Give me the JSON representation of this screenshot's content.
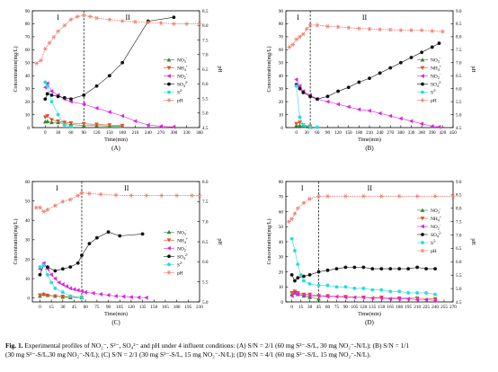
{
  "chart_data": [
    {
      "panel_label": "(A)",
      "type": "line",
      "xlabel": "Time(min)",
      "ylabel": "Concentration(mg/L)",
      "y2label": "pH",
      "xlim": [
        -30,
        360
      ],
      "xticks": [
        0,
        30,
        60,
        90,
        120,
        150,
        180,
        210,
        240,
        270,
        300,
        330,
        360
      ],
      "ylim": [
        0,
        90
      ],
      "yticks": [
        0,
        10,
        20,
        30,
        40,
        50,
        60,
        70,
        80,
        90
      ],
      "y2lim": [
        4.5,
        8.5
      ],
      "y2ticks": [
        4.5,
        5.0,
        5.5,
        6.0,
        6.5,
        7.0,
        7.5,
        8.0,
        8.5
      ],
      "phase_split": 90,
      "phase_labels": [
        "I",
        "II"
      ],
      "legend": "right-middle",
      "series": [
        {
          "name": "NO3-",
          "color": "#2e8b2e",
          "marker": "triangle-up",
          "axis": "left",
          "x": [
            0,
            5,
            15,
            30,
            45,
            60,
            90,
            120,
            150,
            180
          ],
          "y": [
            4.5,
            4.8,
            4,
            4,
            3,
            2.5,
            1.5,
            1.5,
            1.2,
            1
          ]
        },
        {
          "name": "NH4+",
          "color": "#e0502a",
          "marker": "triangle-down",
          "axis": "left",
          "x": [
            0,
            5,
            15,
            30,
            45,
            60,
            90,
            120,
            150,
            180
          ],
          "y": [
            8,
            9,
            6,
            5,
            4,
            3.5,
            3,
            2.5,
            2,
            1.5
          ]
        },
        {
          "name": "NO2-",
          "color": "#dd22dd",
          "marker": "triangle-left",
          "axis": "left",
          "x": [
            0,
            5,
            15,
            30,
            45,
            60,
            90,
            120,
            150,
            180,
            210,
            240,
            270,
            300
          ],
          "y": [
            31,
            34,
            28,
            25,
            22,
            20,
            18,
            15,
            12,
            9,
            5,
            2,
            1,
            0.5
          ]
        },
        {
          "name": "SO4 2-",
          "color": "#111111",
          "marker": "circle",
          "axis": "left",
          "x": [
            0,
            5,
            15,
            30,
            45,
            60,
            90,
            120,
            150,
            180,
            240,
            300
          ],
          "y": [
            22,
            26,
            25,
            24,
            23,
            22,
            25,
            32,
            40,
            50,
            82,
            85
          ]
        },
        {
          "name": "S2-",
          "color": "#22dddd",
          "marker": "circle",
          "axis": "left",
          "x": [
            0,
            5,
            15,
            30,
            45,
            60
          ],
          "y": [
            35,
            32,
            20,
            10,
            2,
            0.5
          ]
        },
        {
          "name": "pH",
          "color": "#f08070",
          "marker": "star",
          "axis": "right",
          "x": [
            -20,
            -10,
            0,
            10,
            20,
            30,
            45,
            60,
            75,
            90,
            105,
            120,
            150,
            180,
            210,
            240,
            270,
            300,
            330,
            360
          ],
          "y": [
            6.7,
            6.8,
            7.2,
            7.4,
            7.6,
            7.8,
            8.0,
            8.2,
            8.3,
            8.35,
            8.3,
            8.25,
            8.2,
            8.15,
            8.12,
            8.1,
            8.08,
            8.05,
            8.05,
            8.05
          ]
        }
      ]
    },
    {
      "panel_label": "(B)",
      "type": "line",
      "xlabel": "Time(min)",
      "ylabel": "Concentration(mg/L)",
      "y2label": "pH",
      "xlim": [
        -30,
        450
      ],
      "xticks": [
        0,
        30,
        60,
        90,
        120,
        150,
        180,
        210,
        240,
        270,
        300,
        330,
        360,
        390,
        420,
        450
      ],
      "ylim": [
        0,
        90
      ],
      "yticks": [
        0,
        10,
        20,
        30,
        40,
        50,
        60,
        70,
        80,
        90
      ],
      "y2lim": [
        4.5,
        9.0
      ],
      "y2ticks": [
        4.5,
        5.0,
        5.5,
        6.0,
        6.5,
        7.0,
        7.5,
        8.0,
        8.5,
        9.0
      ],
      "phase_split": 40,
      "phase_labels": [
        "I",
        "II"
      ],
      "legend": "right-middle",
      "series": [
        {
          "name": "NO3-",
          "color": "#2e8b2e",
          "marker": "triangle-up",
          "axis": "left",
          "x": [
            0,
            10,
            20,
            40
          ],
          "y": [
            1.5,
            1.5,
            1,
            0.5
          ]
        },
        {
          "name": "NH4+",
          "color": "#e0502a",
          "marker": "triangle-down",
          "axis": "left",
          "x": [
            0,
            10,
            20,
            40
          ],
          "y": [
            3,
            4,
            2,
            1
          ]
        },
        {
          "name": "NO2-",
          "color": "#dd22dd",
          "marker": "triangle-left",
          "axis": "left",
          "x": [
            0,
            10,
            20,
            40,
            60,
            90,
            120,
            150,
            180,
            210,
            240,
            270,
            300,
            330,
            360,
            390,
            410
          ],
          "y": [
            37,
            32,
            28,
            25,
            22,
            20,
            18,
            16,
            14,
            13,
            11,
            9,
            7,
            5,
            3,
            1,
            0.5
          ]
        },
        {
          "name": "SO4 2-",
          "color": "#111111",
          "marker": "circle",
          "axis": "left",
          "x": [
            0,
            10,
            20,
            40,
            60,
            90,
            120,
            150,
            180,
            210,
            240,
            270,
            300,
            330,
            360,
            390,
            410
          ],
          "y": [
            33,
            30,
            27,
            24,
            22,
            24,
            28,
            31,
            35,
            38,
            42,
            46,
            50,
            54,
            58,
            62,
            65
          ]
        },
        {
          "name": "S2-",
          "color": "#22dddd",
          "marker": "circle",
          "axis": "left",
          "x": [
            0,
            10,
            20,
            40,
            60
          ],
          "y": [
            32,
            8,
            2,
            0.5,
            0.3
          ]
        },
        {
          "name": "pH",
          "color": "#f08070",
          "marker": "star",
          "axis": "right",
          "x": [
            -20,
            -10,
            0,
            10,
            20,
            30,
            40,
            60,
            90,
            120,
            150,
            180,
            210,
            240,
            270,
            300,
            330,
            360,
            390,
            420
          ],
          "y": [
            7.6,
            7.7,
            7.9,
            8.0,
            8.1,
            8.3,
            8.45,
            8.45,
            8.4,
            8.38,
            8.35,
            8.32,
            8.3,
            8.28,
            8.27,
            8.25,
            8.25,
            8.25,
            8.22,
            8.2
          ]
        }
      ]
    },
    {
      "panel_label": "(C)",
      "type": "line",
      "xlabel": "Time(min)",
      "ylabel": "Concentration(mg/L)",
      "y2label": "pH",
      "xlim": [
        -10,
        210
      ],
      "xticks": [
        0,
        15,
        30,
        45,
        60,
        75,
        90,
        105,
        120,
        135,
        150,
        165,
        180,
        195,
        210
      ],
      "ylim": [
        -2,
        60
      ],
      "yticks": [
        0,
        10,
        20,
        30,
        40,
        50,
        60
      ],
      "y2lim": [
        5.0,
        8.0
      ],
      "y2ticks": [
        5.0,
        5.5,
        6.0,
        6.5,
        7.0,
        7.5,
        8.0
      ],
      "phase_split": 55,
      "phase_labels": [
        "I",
        "II"
      ],
      "legend": "right-middle",
      "series": [
        {
          "name": "NO3-",
          "color": "#2e8b2e",
          "marker": "triangle-up",
          "axis": "left",
          "x": [
            0,
            5,
            10,
            20,
            30,
            40,
            55
          ],
          "y": [
            1,
            2,
            1.5,
            1,
            0.5,
            0.3,
            0.2
          ]
        },
        {
          "name": "NH4+",
          "color": "#e0502a",
          "marker": "triangle-down",
          "axis": "left",
          "x": [
            0,
            5,
            10,
            20,
            30,
            40,
            55
          ],
          "y": [
            1.5,
            1.8,
            1.2,
            1,
            0.8,
            0.5,
            0.3
          ]
        },
        {
          "name": "NO2-",
          "color": "#dd22dd",
          "marker": "triangle-left",
          "axis": "left",
          "x": [
            0,
            5,
            10,
            15,
            20,
            25,
            30,
            35,
            40,
            45,
            50,
            55,
            60,
            70,
            80,
            90,
            100,
            110,
            120,
            130,
            140
          ],
          "y": [
            15,
            18,
            15,
            12,
            10,
            8,
            7,
            6,
            5,
            4.5,
            4,
            3.5,
            3,
            2.5,
            2,
            1.5,
            1,
            0.8,
            0.5,
            0.3,
            0.2
          ]
        },
        {
          "name": "SO4 2-",
          "color": "#111111",
          "marker": "circle",
          "axis": "left",
          "x": [
            0,
            5,
            10,
            20,
            30,
            40,
            50,
            55,
            65,
            75,
            90,
            105,
            135
          ],
          "y": [
            12,
            17,
            16,
            14,
            15,
            16,
            18,
            22,
            28,
            31,
            34,
            32,
            33
          ]
        },
        {
          "name": "S2-",
          "color": "#22dddd",
          "marker": "circle",
          "axis": "left",
          "x": [
            0,
            5,
            10,
            15,
            20,
            30,
            40,
            55
          ],
          "y": [
            16,
            17,
            12,
            8,
            5,
            3,
            1,
            0.3
          ]
        },
        {
          "name": "pH",
          "color": "#f08070",
          "marker": "star",
          "axis": "right",
          "x": [
            -5,
            0,
            5,
            10,
            20,
            30,
            40,
            50,
            55,
            65,
            80,
            100,
            120,
            140,
            160,
            180,
            200,
            210
          ],
          "y": [
            7.35,
            7.35,
            7.25,
            7.3,
            7.4,
            7.5,
            7.55,
            7.65,
            7.72,
            7.7,
            7.68,
            7.66,
            7.65,
            7.65,
            7.65,
            7.65,
            7.65,
            7.65
          ]
        }
      ]
    },
    {
      "panel_label": "(D)",
      "type": "line",
      "xlabel": "Time(min)",
      "ylabel": "Concentration(mg/L)",
      "y2label": "pH",
      "xlim": [
        -10,
        270
      ],
      "xticks": [
        0,
        15,
        30,
        45,
        60,
        75,
        90,
        105,
        120,
        135,
        150,
        165,
        180,
        195,
        210,
        225,
        240,
        255,
        270
      ],
      "ylim": [
        0,
        80
      ],
      "yticks": [
        0,
        10,
        20,
        30,
        40,
        50,
        60,
        70,
        80
      ],
      "y2lim": [
        4.5,
        9.0
      ],
      "y2ticks": [
        4.5,
        5.0,
        5.5,
        6.0,
        6.5,
        7.0,
        7.5,
        8.0,
        8.5,
        9.0
      ],
      "phase_split": 45,
      "phase_labels": [
        "I",
        "II"
      ],
      "legend": "right-top",
      "series": [
        {
          "name": "NO3-",
          "color": "#2e8b2e",
          "marker": "triangle-up",
          "axis": "left",
          "x": [
            0,
            5,
            10,
            20,
            30,
            45
          ],
          "y": [
            5,
            6,
            5,
            4,
            3,
            2
          ]
        },
        {
          "name": "NH4+",
          "color": "#e0502a",
          "marker": "triangle-down",
          "axis": "left",
          "x": [
            0,
            5,
            10,
            20,
            30,
            45,
            60,
            90,
            120,
            150,
            180,
            210,
            240
          ],
          "y": [
            6,
            7,
            6,
            5,
            5,
            4,
            4,
            3.5,
            3,
            3,
            2.5,
            2.5,
            2
          ]
        },
        {
          "name": "NO2-",
          "color": "#dd22dd",
          "marker": "triangle-left",
          "axis": "left",
          "x": [
            0,
            5,
            10,
            20,
            30,
            45,
            60,
            75,
            90,
            105,
            120,
            135,
            150,
            165,
            180,
            195,
            210,
            225,
            240
          ],
          "y": [
            4,
            6,
            5,
            4.5,
            4,
            4,
            3.5,
            3.5,
            3,
            3,
            3,
            2.5,
            2.5,
            2,
            2,
            2,
            1.5,
            1.5,
            1
          ]
        },
        {
          "name": "SO4 2-",
          "color": "#111111",
          "marker": "circle",
          "axis": "left",
          "x": [
            0,
            5,
            10,
            20,
            30,
            45,
            60,
            75,
            90,
            105,
            120,
            135,
            150,
            165,
            180,
            195,
            210,
            225,
            240
          ],
          "y": [
            18,
            14,
            16,
            17,
            18,
            20,
            21,
            22,
            23,
            23,
            23,
            22,
            22,
            22,
            22,
            22,
            23,
            22,
            22
          ]
        },
        {
          "name": "S2-",
          "color": "#22dddd",
          "marker": "circle",
          "axis": "left",
          "x": [
            0,
            5,
            10,
            15,
            20,
            30,
            45,
            60,
            75,
            90,
            105,
            120,
            135,
            150,
            165,
            180,
            195,
            210,
            225,
            240
          ],
          "y": [
            42,
            34,
            25,
            18,
            14,
            12,
            11,
            11,
            10,
            10,
            9,
            9,
            8,
            8,
            7,
            7,
            6,
            6,
            6,
            5
          ]
        },
        {
          "name": "pH",
          "color": "#f08070",
          "marker": "star",
          "axis": "right",
          "x": [
            -5,
            0,
            5,
            10,
            20,
            30,
            45,
            60,
            90,
            120,
            150,
            180,
            210,
            240,
            270
          ],
          "y": [
            7.5,
            7.6,
            7.8,
            8.0,
            8.2,
            8.35,
            8.45,
            8.45,
            8.45,
            8.45,
            8.45,
            8.45,
            8.45,
            8.45,
            8.45
          ]
        }
      ]
    }
  ],
  "caption": {
    "line1_bold": "Fig. 1.",
    "line1": " Experimental profiles of NO₂⁻, S²⁻, SO₄²⁻ and pH under 4 influent conditions: (A) S/N = 2/1 (60 mg S²⁻-S/L, 30 mg NO₂⁻-N/L); (B) S/N = 1/1",
    "line2": "(30 mg S²⁻-S/L,30 mg NO₂⁻-N/L); (C) S/N = 2/1 (30 mg S²⁻-S/L, 15 mg NO₂⁻-N/L); (D) S/N = 4/1 (60 mg S²⁻-S/L, 15 mg NO₂⁻-N/L)."
  }
}
